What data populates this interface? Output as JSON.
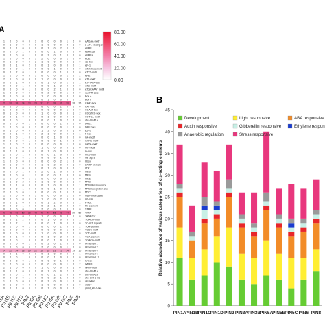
{
  "panels": {
    "a": "A",
    "b": "B"
  },
  "colorbar": {
    "ticks": [
      "80.00",
      "60.00",
      "40.00",
      "20.00",
      "0.00"
    ],
    "stops": [
      "#e8102a",
      "#f04a6b",
      "#f37ea8",
      "#f6c3e0",
      "#ffffff"
    ]
  },
  "heatmap_motifs": [
    "AAGAA-motif",
    "2-AF1 binding site",
    "ABRE",
    "ABRE3a",
    "ABRE4",
    "ACE",
    "AE-box",
    "AP-1",
    "AT-rich element",
    "ATCT-motif",
    "ARE",
    "AT1-motif",
    "AT~TATA-box",
    "ATC-motif",
    "ATGCAAAT motif",
    "AuxRR-core",
    "Box 4",
    "Box II",
    "CAAT-box",
    "CAT-box",
    "CCAAT-box",
    "CCGTCC-box",
    "CGTCA-motif",
    "chs-CMA1a",
    "DRE1",
    "DRE core",
    "E2Fb",
    "F-box",
    "GA-motif",
    "GARE-motif",
    "GATA-motif",
    "GC-motif",
    "G-box",
    "GT1-motif",
    "HD-Zip 1",
    "I-box",
    "LAMP-element",
    "LTR",
    "MBS",
    "MBSI",
    "MRE",
    "MYB",
    "MYB-like sequence",
    "MYB recognition site",
    "MYC",
    "Myb-binding site",
    "O2-site",
    "P-box",
    "RY-element",
    "STRE",
    "TATA",
    "TATA-box",
    "TGACG-motif",
    "TC-rich repeats",
    "TCA-element",
    "TCCC-motif",
    "TCT-motif",
    "TGA-element",
    "TGACG-motif",
    "Unnamed 1",
    "Unnamed 2",
    "Unnamed 4",
    "Unnamed 6",
    "Unnamed 12",
    "W box",
    "WRE3",
    "WUN-motif",
    "chs-CMA1a",
    "chs-CMA2a",
    "chs-Unit 1 m1",
    "circadian",
    "dOCT",
    "plant_AP-2-like"
  ],
  "chart_data": [
    {
      "type": "heatmap",
      "panel": "A",
      "columns": [
        "PIN1A",
        "PIN1B",
        "PIN1C",
        "PIN1D",
        "PIN2",
        "PIN3A",
        "PIN3B",
        "PIN3C",
        "PIN5A",
        "PIN5B",
        "PIN5C",
        "PIN6",
        "PIN8"
      ],
      "rows": [
        "AAGAA-motif",
        "2-AF1 binding site",
        "ABRE",
        "ABRE3a",
        "ABRE4",
        "ACE",
        "AE-box",
        "AP-1",
        "AT-rich element",
        "ATCT-motif",
        "ARE",
        "AT1-motif",
        "AT~TATA-box",
        "ATC-motif",
        "ATGCAAAT motif",
        "AuxRR-core",
        "Box 4",
        "Box II",
        "CAAT-box",
        "CAT-box",
        "CCAAT-box",
        "CCGTCC-box",
        "CGTCA-motif",
        "chs-CMA1a",
        "DRE1",
        "DRE core",
        "E2Fb",
        "F-box",
        "GA-motif",
        "GARE-motif",
        "GATA-motif",
        "GC-motif",
        "G-box",
        "GT1-motif",
        "HD-Zip 1",
        "I-box",
        "LAMP-element",
        "LTR",
        "MBS",
        "MBSI",
        "MRE",
        "MYB",
        "MYB-like sequence",
        "MYB recognition site",
        "MYC",
        "Myb-binding site",
        "O2-site",
        "P-box",
        "RY-element",
        "STRE",
        "TATA",
        "TATA-box",
        "TGACG-motif",
        "TC-rich repeats",
        "TCA-element",
        "TCCC-motif",
        "TCT-motif",
        "TGA-element",
        "TGACG-motif",
        "Unnamed 1",
        "Unnamed 2",
        "Unnamed 4",
        "Unnamed 6",
        "Unnamed 12",
        "W box",
        "WRE3",
        "WUN-motif",
        "chs-CMA1a",
        "chs-CMA2a",
        "chs-Unit 1 m1",
        "circadian",
        "dOCT",
        "plant_AP-2-like"
      ],
      "highlight_rows": {
        "CAAT-box": [
          29,
          26,
          38,
          34,
          33,
          28,
          31,
          27,
          38,
          31,
          30,
          28,
          35
        ],
        "TATA": [
          41,
          45,
          60,
          52,
          38,
          42,
          46,
          40,
          55,
          48,
          44,
          39,
          50
        ],
        "Unnamed 4": [
          24,
          22,
          24,
          18,
          19,
          22,
          16,
          18,
          18,
          16,
          14,
          19,
          10
        ]
      },
      "value_range": [
        0,
        80
      ]
    },
    {
      "type": "bar",
      "stacked": true,
      "panel": "B",
      "categories": [
        "PIN1A",
        "PIN1B",
        "PIN1C",
        "PIN1D",
        "PIN2",
        "PIN3A",
        "PIN3B",
        "PIN5A",
        "PIN5B",
        "PIN5C",
        "PIN6",
        "PIN8"
      ],
      "ylabel": "Relative abundance of various categories of cis-acting elements",
      "ylim": [
        0,
        45
      ],
      "yticks": [
        0,
        5,
        10,
        15,
        20,
        25,
        30,
        35,
        40,
        45
      ],
      "grid": false,
      "legend_position": "top-left",
      "series": [
        {
          "name": "Development",
          "color": "#66cc33",
          "values": [
            11,
            6,
            7,
            10,
            9,
            6,
            5,
            7,
            6,
            4,
            6,
            8
          ]
        },
        {
          "name": "Light responsive",
          "color": "#ffee33",
          "values": [
            7,
            5,
            6,
            6,
            9,
            6,
            6,
            8,
            6,
            7,
            5,
            5
          ]
        },
        {
          "name": "ABA responsive",
          "color": "#f28c28",
          "values": [
            7,
            4,
            6,
            4,
            7,
            6,
            5,
            7,
            6,
            5,
            6,
            6
          ]
        },
        {
          "name": "Auxin responsive",
          "color": "#e8262a",
          "values": [
            1,
            0,
            1,
            1,
            1,
            1,
            1,
            1,
            1,
            1,
            1,
            1
          ]
        },
        {
          "name": "Gibberellin responsive",
          "color": "#c8f0e6",
          "values": [
            1,
            1,
            2,
            1,
            1,
            1,
            1,
            1,
            1,
            1,
            1,
            1
          ]
        },
        {
          "name": "Ethylene responsive",
          "color": "#1a3ccf",
          "values": [
            0,
            0,
            1,
            1,
            0,
            0,
            0,
            0,
            0,
            1,
            0,
            0
          ]
        },
        {
          "name": "Anaerobic regulation",
          "color": "#9a9a9a",
          "values": [
            1,
            1,
            2,
            1,
            2,
            1,
            1,
            2,
            1,
            1,
            1,
            1
          ]
        },
        {
          "name": "Stress responsive",
          "color": "#e8377d",
          "values": [
            9,
            6,
            8,
            7,
            8,
            5,
            7,
            14,
            6,
            8,
            7,
            7
          ]
        }
      ]
    }
  ]
}
